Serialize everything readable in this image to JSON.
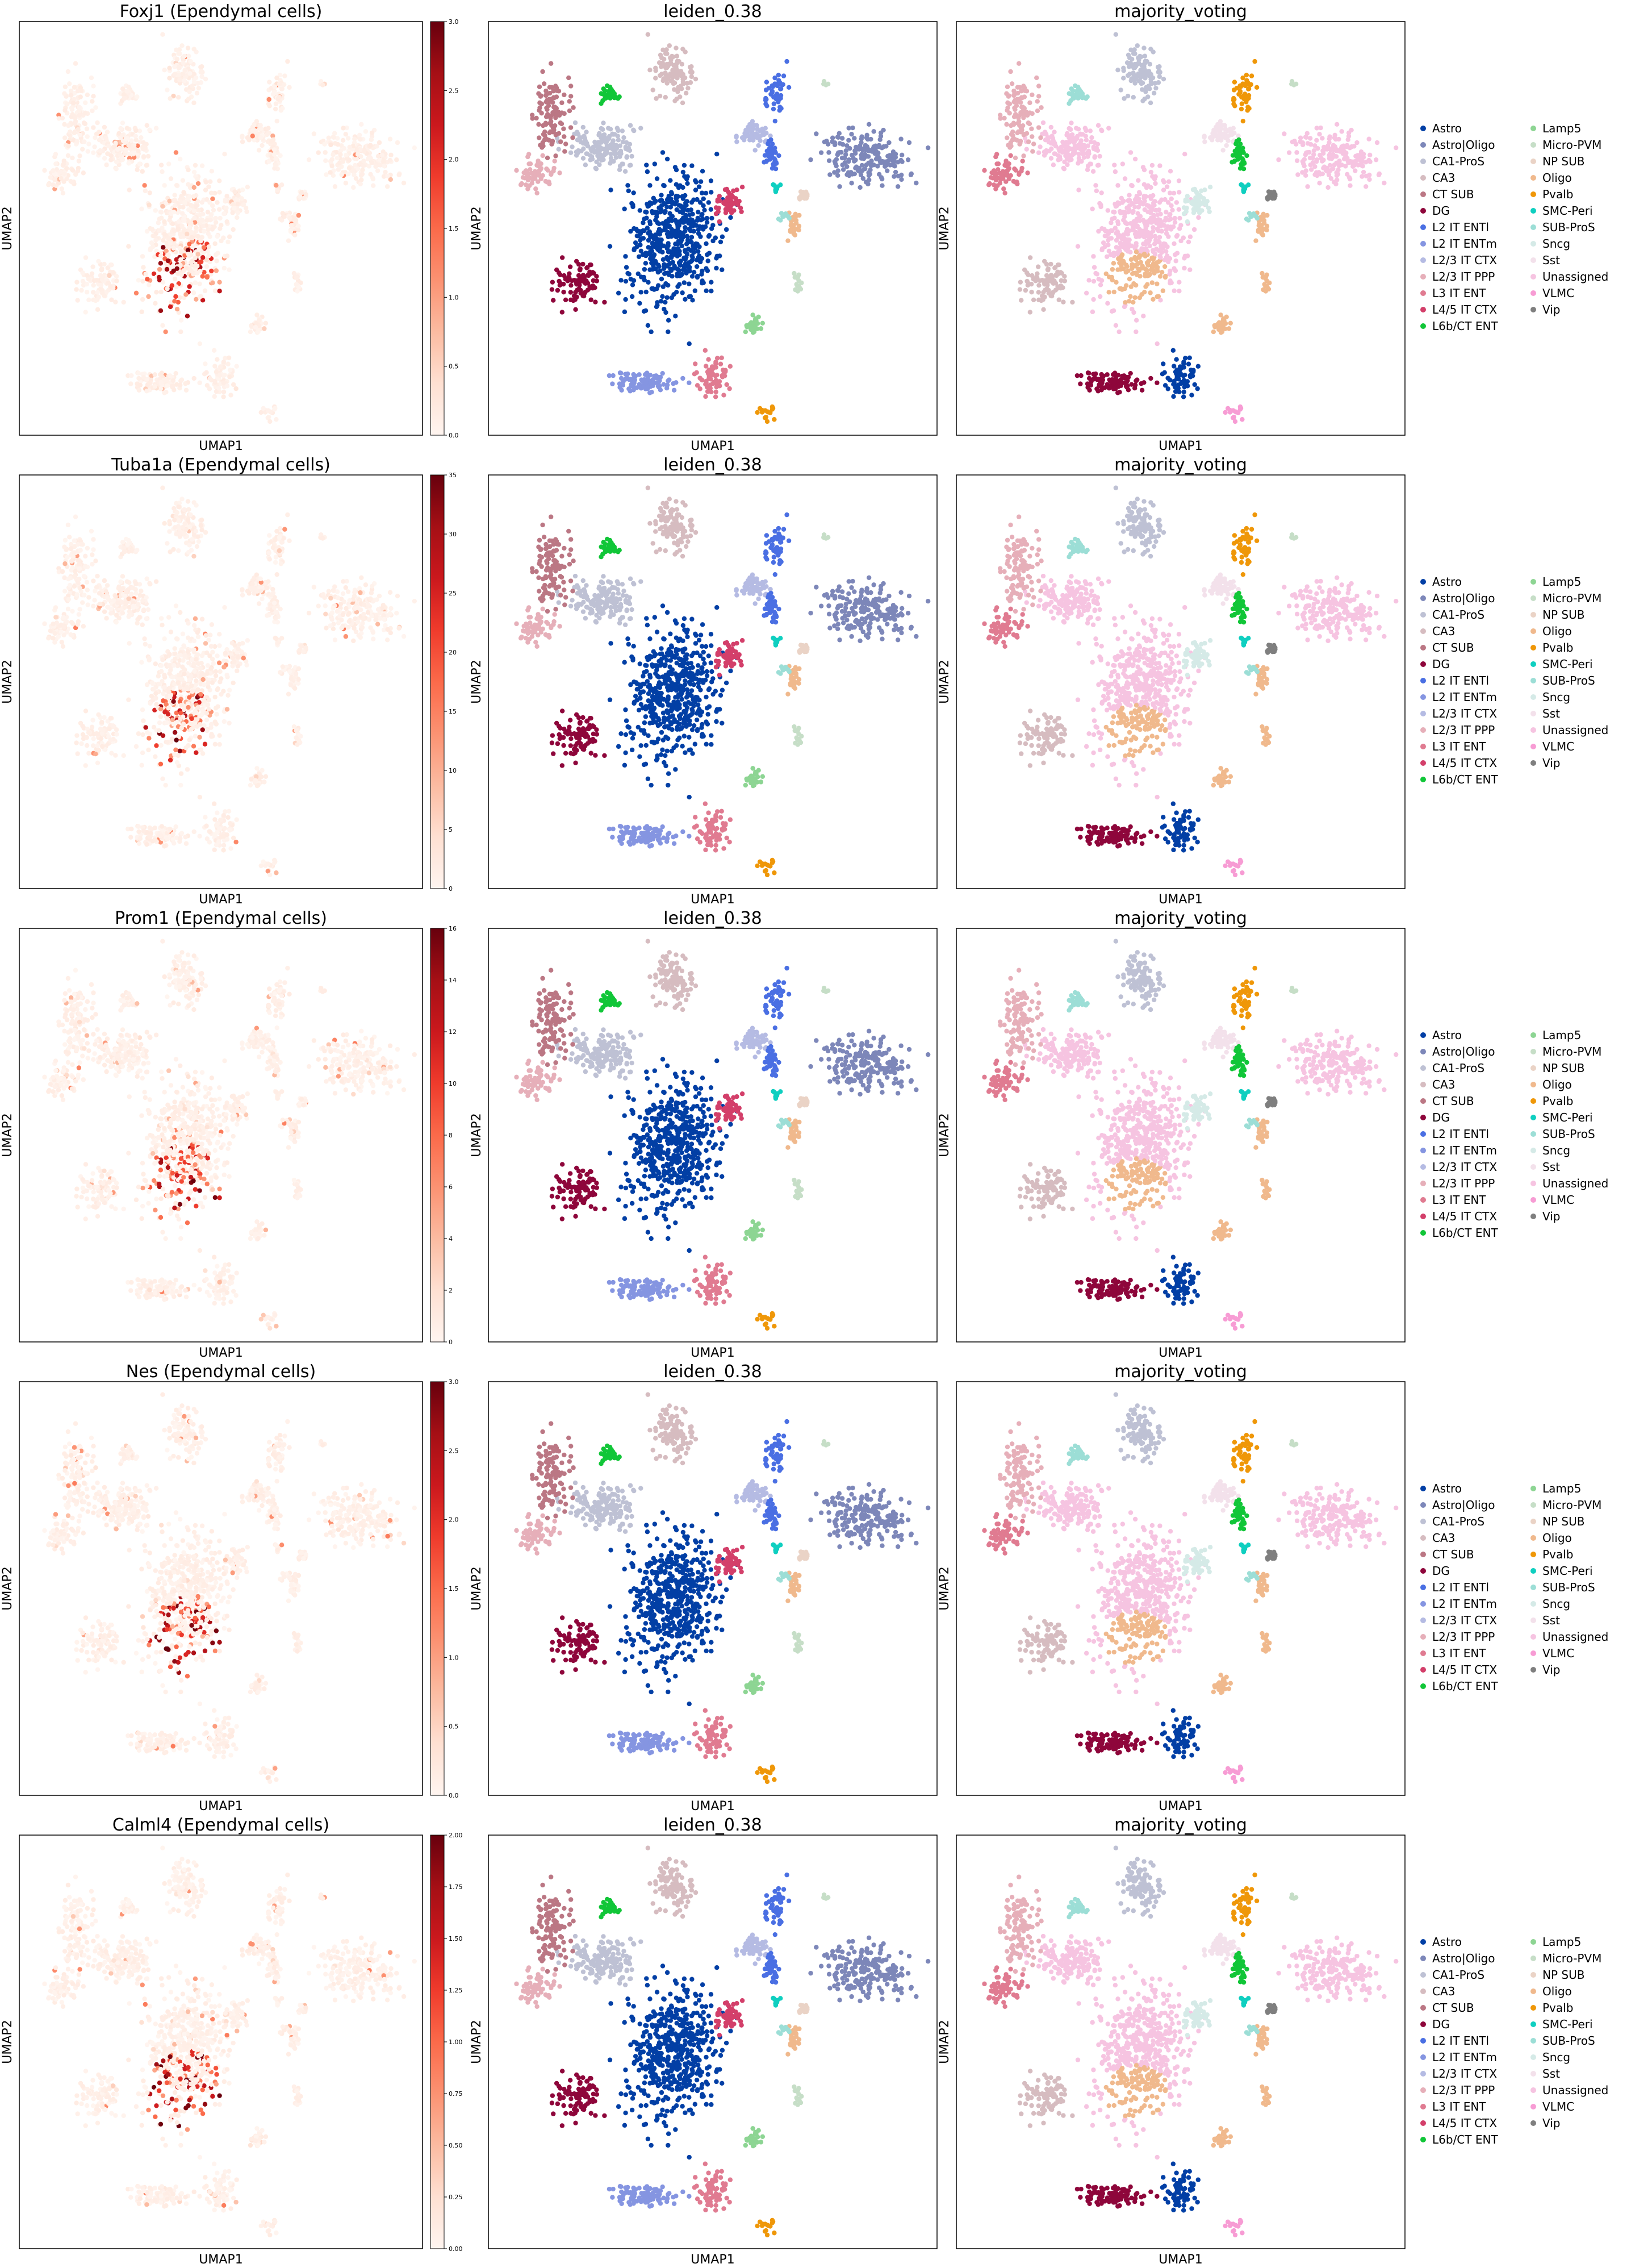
{
  "figure": {
    "xlabel": "UMAP1",
    "ylabel": "UMAP2",
    "cluster_title": "leiden_0.38",
    "celltype_title": "majority_voting"
  },
  "chart_data": [
    {
      "type": "scatter",
      "panel": "expression",
      "title": "Foxj1 (Ependymal cells)",
      "xlabel": "UMAP1",
      "ylabel": "UMAP2",
      "colorbar": {
        "cmap": "Reds",
        "range": [
          0,
          3.0
        ],
        "ticks": [
          "0.0",
          "0.5",
          "1.0",
          "1.5",
          "2.0",
          "2.5",
          "3.0"
        ]
      }
    },
    {
      "type": "scatter",
      "panel": "expression",
      "title": "Tuba1a (Ependymal cells)",
      "xlabel": "UMAP1",
      "ylabel": "UMAP2",
      "colorbar": {
        "cmap": "Reds",
        "range": [
          0,
          35
        ],
        "ticks": [
          "0",
          "5",
          "10",
          "15",
          "20",
          "25",
          "30",
          "35"
        ]
      }
    },
    {
      "type": "scatter",
      "panel": "expression",
      "title": "Prom1 (Ependymal cells)",
      "xlabel": "UMAP1",
      "ylabel": "UMAP2",
      "colorbar": {
        "cmap": "Reds",
        "range": [
          0,
          16
        ],
        "ticks": [
          "0",
          "2",
          "4",
          "6",
          "8",
          "10",
          "12",
          "14",
          "16"
        ]
      }
    },
    {
      "type": "scatter",
      "panel": "expression",
      "title": "Nes (Ependymal cells)",
      "xlabel": "UMAP1",
      "ylabel": "UMAP2",
      "colorbar": {
        "cmap": "Reds",
        "range": [
          0,
          3.0
        ],
        "ticks": [
          "0.0",
          "0.5",
          "1.0",
          "1.5",
          "2.0",
          "2.5",
          "3.0"
        ]
      }
    },
    {
      "type": "scatter",
      "panel": "expression",
      "title": "Calml4 (Ependymal cells)",
      "xlabel": "UMAP1",
      "ylabel": "UMAP2",
      "colorbar": {
        "cmap": "Reds",
        "range": [
          0,
          2.0
        ],
        "ticks": [
          "0.00",
          "0.25",
          "0.50",
          "0.75",
          "1.00",
          "1.25",
          "1.50",
          "1.75",
          "2.00"
        ]
      }
    },
    {
      "type": "scatter",
      "panel": "categorical",
      "title": "leiden_0.38",
      "xlabel": "UMAP1",
      "ylabel": "UMAP2",
      "repeated_in_rows": 5
    },
    {
      "type": "scatter",
      "panel": "categorical",
      "title": "majority_voting",
      "xlabel": "UMAP1",
      "ylabel": "UMAP2",
      "repeated_in_rows": 5,
      "legend": {
        "placement": "right",
        "entries": [
          {
            "label": "Astro",
            "color": "#023fa5"
          },
          {
            "label": "Astro|Oligo",
            "color": "#7d87b9"
          },
          {
            "label": "CA1-ProS",
            "color": "#bec1d4"
          },
          {
            "label": "CA3",
            "color": "#d6bcc0"
          },
          {
            "label": "CT SUB",
            "color": "#bb7784"
          },
          {
            "label": "DG",
            "color": "#8e063b"
          },
          {
            "label": "L2 IT ENTl",
            "color": "#4a6fe3"
          },
          {
            "label": "L2 IT ENTm",
            "color": "#8595e1"
          },
          {
            "label": "L2/3 IT CTX",
            "color": "#b5bbe3"
          },
          {
            "label": "L2/3 IT PPP",
            "color": "#e6afb9"
          },
          {
            "label": "L3 IT ENT",
            "color": "#e07b91"
          },
          {
            "label": "L4/5 IT CTX",
            "color": "#d33f6a"
          },
          {
            "label": "L6b/CT ENT",
            "color": "#11c638"
          },
          {
            "label": "Lamp5",
            "color": "#8dd593"
          },
          {
            "label": "Micro-PVM",
            "color": "#c6dec7"
          },
          {
            "label": "NP SUB",
            "color": "#ead3c6"
          },
          {
            "label": "Oligo",
            "color": "#f0b98d"
          },
          {
            "label": "Pvalb",
            "color": "#ef9708"
          },
          {
            "label": "SMC-Peri",
            "color": "#0fcfc0"
          },
          {
            "label": "SUB-ProS",
            "color": "#9cded6"
          },
          {
            "label": "Sncg",
            "color": "#d5eae7"
          },
          {
            "label": "Sst",
            "color": "#f3e1eb"
          },
          {
            "label": "Unassigned",
            "color": "#f6c4e1"
          },
          {
            "label": "VLMC",
            "color": "#f79cd4"
          },
          {
            "label": "Vip",
            "color": "#7f7f7f"
          }
        ]
      }
    }
  ]
}
